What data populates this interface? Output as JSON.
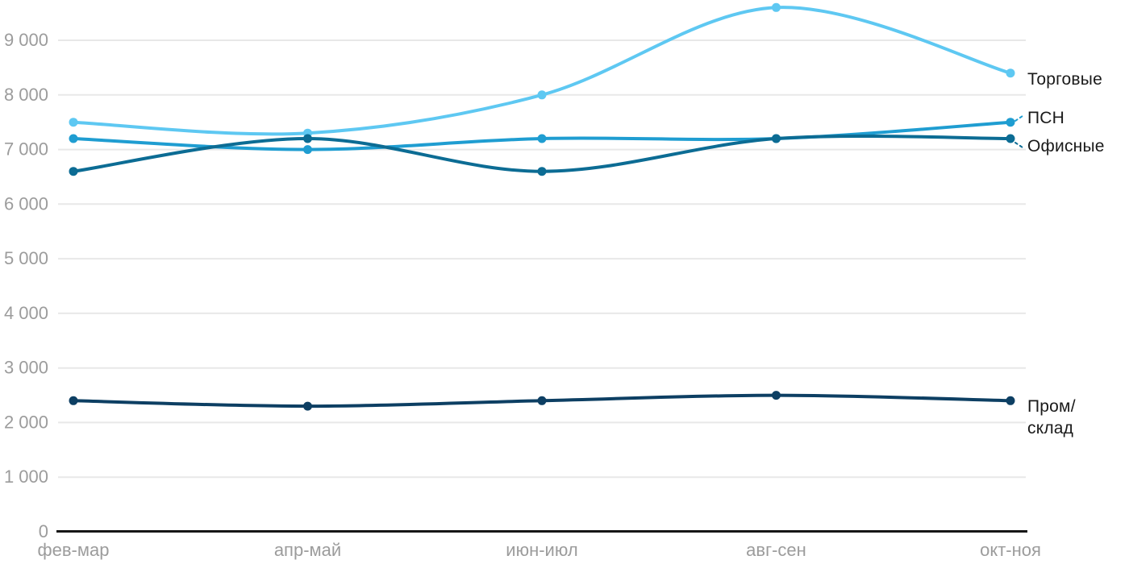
{
  "chart_data": {
    "type": "line",
    "title": "",
    "xlabel": "",
    "ylabel": "",
    "categories": [
      "фев-мар",
      "апр-май",
      "июн-июл",
      "авг-сен",
      "окт-ноя"
    ],
    "series": [
      {
        "name": "Торговые",
        "color": "#5ec8f2",
        "values": [
          7500,
          7300,
          8000,
          9600,
          8400
        ],
        "label_display": "Торговые"
      },
      {
        "name": "ПСН",
        "color": "#1f9dd1",
        "values": [
          7200,
          7000,
          7200,
          7200,
          7500
        ],
        "label_display": "ПСН"
      },
      {
        "name": "Офисные",
        "color": "#0c6c94",
        "values": [
          6600,
          7200,
          6600,
          7200,
          7200
        ],
        "label_display": "Офисные"
      },
      {
        "name": "Пром/склад",
        "color": "#0d3f63",
        "values": [
          2400,
          2300,
          2400,
          2500,
          2400
        ],
        "label_display": "Пром/\nсклад"
      }
    ],
    "ylim": [
      0,
      9000
    ],
    "y_tick_step": 1000,
    "y_tick_labels": [
      "0",
      "1 000",
      "2 000",
      "3 000",
      "4 000",
      "5 000",
      "6 000",
      "7 000",
      "8 000",
      "9 000"
    ],
    "grid": true,
    "legend_position": "direct-labels-right"
  },
  "colors": {
    "background": "#ffffff",
    "gridline": "#e8e8e8",
    "axis_line": "#161616",
    "tick_label": "#9c9c9c",
    "series_label_text": "#1a1a1a"
  }
}
